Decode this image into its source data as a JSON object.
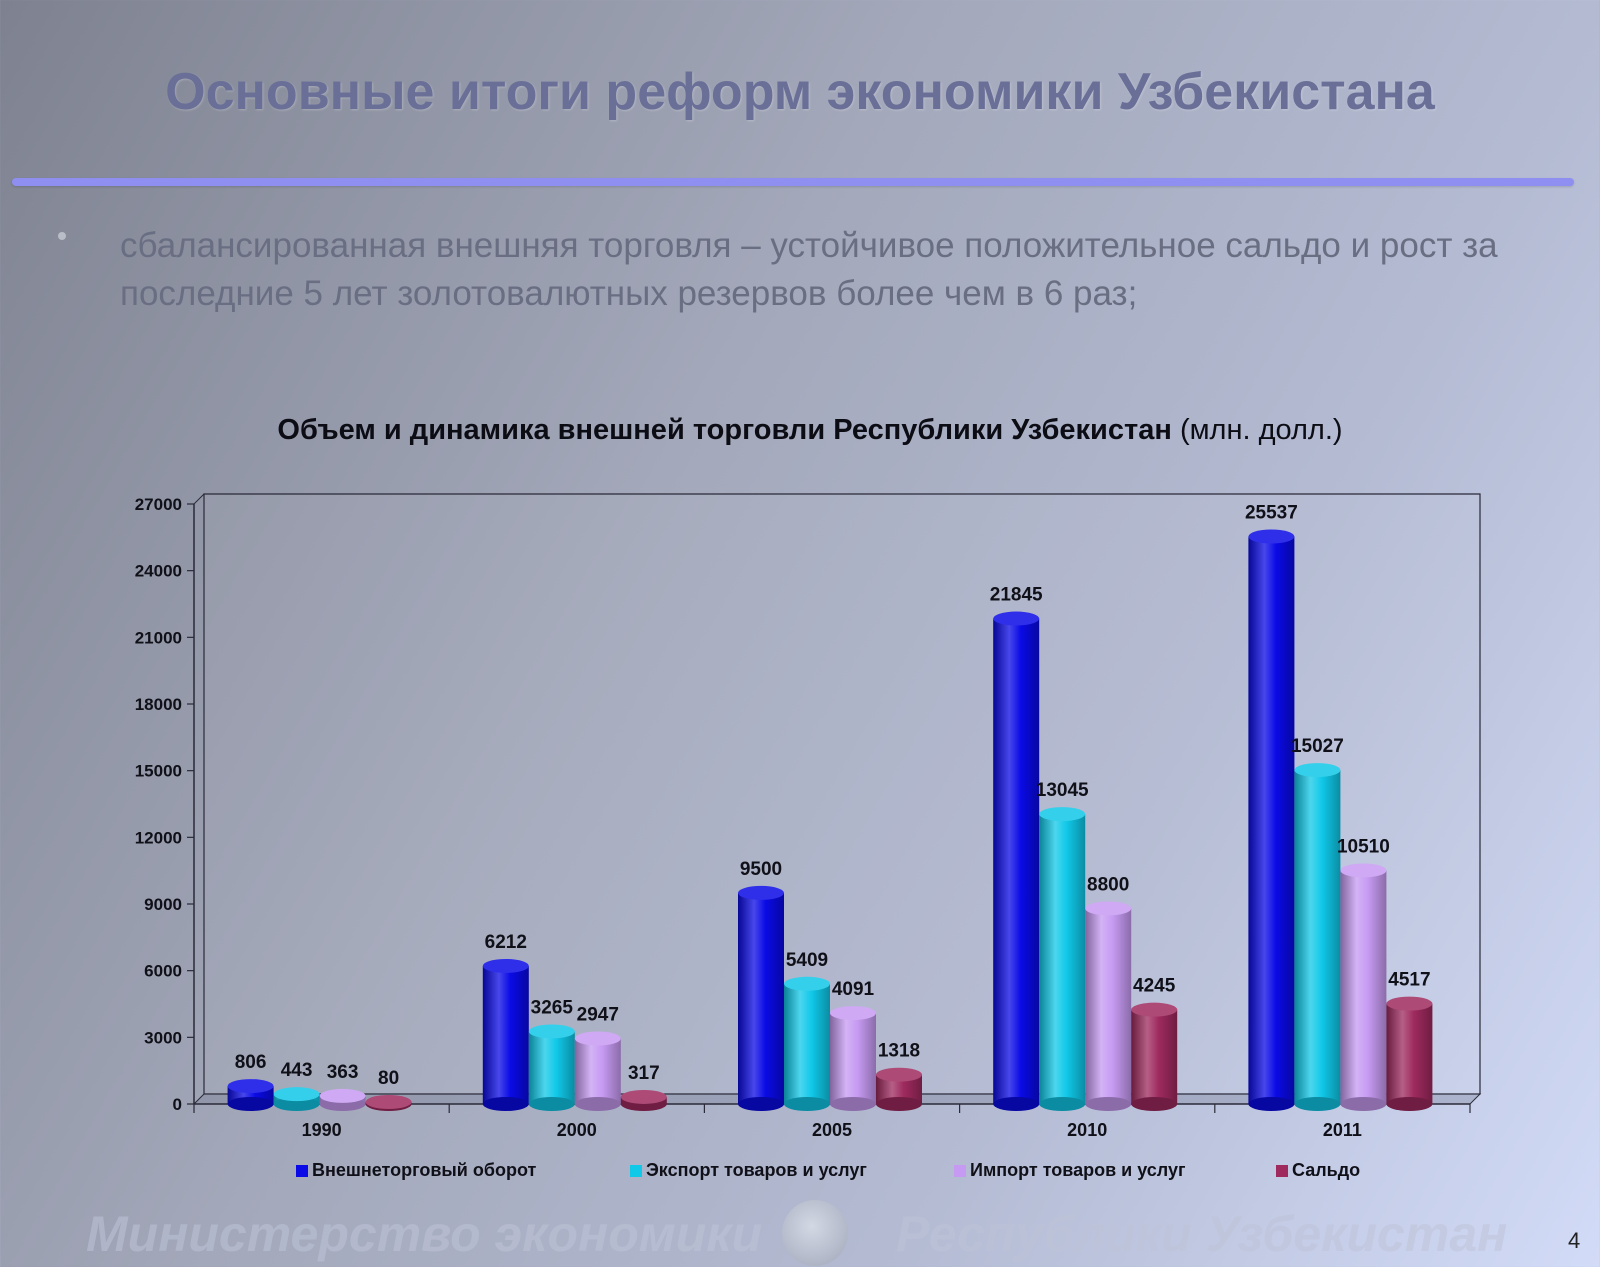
{
  "slide": {
    "title": "Основные итоги реформ экономики Узбекистана",
    "bullet": "сбалансированная внешняя торговля – устойчивое положительное сальдо и рост  за последние 5 лет золотовалютных резервов более чем в 6 раз;",
    "footer_left": "Министерство экономики",
    "footer_right": "Республики Узбекистан",
    "page_number": "4"
  },
  "chart_data": {
    "type": "bar",
    "title": "Объем и динамика внешней торговли Республики Узбекистан",
    "title_unit": "(млн. долл.)",
    "categories": [
      "1990",
      "2000",
      "2005",
      "2010",
      "2011"
    ],
    "ylim": [
      0,
      27000
    ],
    "yticks": [
      "0",
      "3000",
      "6000",
      "9000",
      "12000",
      "15000",
      "18000",
      "21000",
      "24000",
      "27000"
    ],
    "legend_position": "bottom",
    "grid": false,
    "series": [
      {
        "name": "Внешнеторговый оборот",
        "color": "#0a0ae6",
        "values": [
          806,
          6212,
          9500,
          21845,
          25537
        ]
      },
      {
        "name": "Экспорт товаров и услуг",
        "color": "#10c8e8",
        "values": [
          443,
          3265,
          5409,
          13045,
          15027
        ]
      },
      {
        "name": "Импорт товаров и услуг",
        "color": "#c69af2",
        "values": [
          363,
          2947,
          4091,
          8800,
          10510
        ]
      },
      {
        "name": "Сальдо",
        "color": "#9e2a5e",
        "values": [
          80,
          317,
          1318,
          4245,
          4517
        ]
      }
    ]
  }
}
